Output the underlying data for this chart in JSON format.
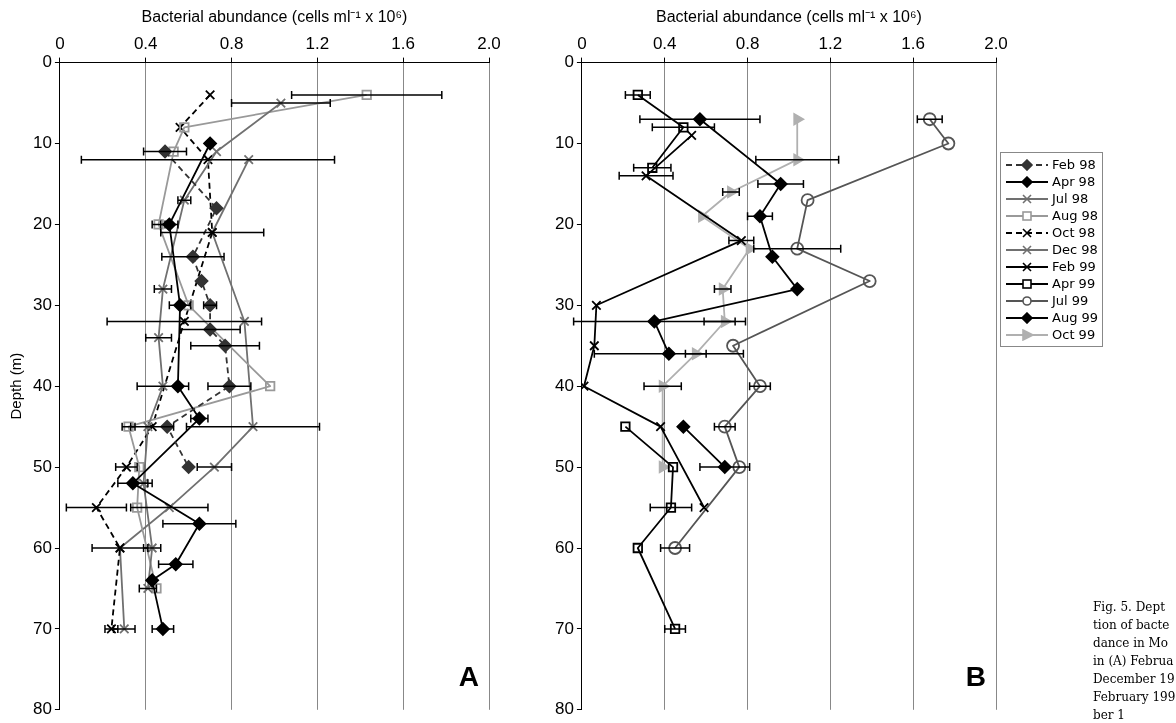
{
  "chart_data": [
    {
      "type": "line",
      "xlabel": "Bacterial abundance (cells ml⁻¹ x 10⁶)",
      "ylabel": "Depth (m)",
      "xlim": [
        0,
        2
      ],
      "xticks": [
        0,
        0.4,
        0.8,
        1.2,
        1.6,
        {
          "value": 2,
          "label": "2.0"
        }
      ],
      "ylim": [
        80,
        0
      ],
      "yticks": [
        0,
        10,
        20,
        30,
        40,
        50,
        60,
        70,
        80
      ],
      "grid": "x",
      "legend": "right",
      "annotations": [
        "A"
      ],
      "series": [
        {
          "name": "Feb 98",
          "color": "#333333",
          "line_style": "dashed",
          "marker": "diamond",
          "x": [
            0.49,
            0.73,
            0.62,
            0.66,
            0.7,
            0.7,
            0.77,
            0.79,
            0.5,
            0.6
          ],
          "values": [
            11,
            18,
            24,
            27,
            30,
            33,
            35,
            40,
            45,
            50
          ],
          "xerrors": [
            0.1,
            null,
            0.145,
            null,
            0.03,
            0.14,
            0.16,
            0.1,
            null,
            null
          ]
        },
        {
          "name": "Apr 98",
          "color": "#000000",
          "line_style": "solid",
          "marker": "diamond",
          "x": [
            0.7,
            0.51,
            0.56,
            0.55,
            0.65,
            0.34,
            0.65,
            0.54,
            0.43,
            0.48
          ],
          "values": [
            10,
            20,
            30,
            40,
            44,
            52,
            57,
            62,
            64,
            70
          ],
          "xerrors": [
            null,
            0.04,
            0.05,
            null,
            0.04,
            0.07,
            0.17,
            0.08,
            null,
            0.05
          ]
        },
        {
          "name": "Jul 98",
          "color": "#707070",
          "line_style": "solid",
          "marker": "cross",
          "x": [
            1.03,
            0.73,
            0.58,
            0.48,
            0.46,
            0.48,
            0.41,
            0.39,
            0.43,
            0.41
          ],
          "values": [
            5,
            11,
            17,
            28,
            34,
            40,
            45,
            52,
            60,
            65
          ],
          "xerrors": [
            0.23,
            null,
            0.03,
            0.04,
            0.06,
            0.12,
            null,
            0.04,
            0.04,
            0.04
          ]
        },
        {
          "name": "Aug 98",
          "color": "#999999",
          "line_style": "solid",
          "marker": "square",
          "x": [
            1.43,
            0.58,
            0.53,
            0.46,
            0.6,
            0.98,
            0.32,
            0.37,
            0.36,
            0.45
          ],
          "values": [
            4,
            8,
            11,
            20,
            30,
            40,
            45,
            50,
            55,
            65
          ],
          "xerrors": [
            0.35,
            null,
            null,
            0.03,
            null,
            null,
            0.03,
            null,
            null,
            null
          ]
        },
        {
          "name": "Oct 98",
          "color": "#000000",
          "line_style": "dashed",
          "marker": "cross",
          "x": [
            0.7,
            0.56,
            0.69,
            0.71,
            0.58,
            0.43,
            0.31,
            0.17,
            0.28,
            0.24
          ],
          "values": [
            4,
            8,
            12,
            21,
            32,
            45,
            50,
            55,
            60,
            70
          ],
          "xerrors": [
            null,
            null,
            0.59,
            0.24,
            0.36,
            0.1,
            0.05,
            0.14,
            0.13,
            0.03
          ]
        },
        {
          "name": "Dec 98",
          "color": "#707070",
          "line_style": "solid",
          "marker": "cross",
          "x": [
            0.88,
            0.71,
            0.86,
            0.9,
            0.72,
            0.51,
            0.28,
            0.3
          ],
          "values": [
            12,
            21,
            32,
            45,
            50,
            55,
            60,
            70
          ],
          "xerrors": [
            null,
            null,
            null,
            0.31,
            0.08,
            0.18,
            null,
            0.05
          ]
        }
      ]
    },
    {
      "type": "line",
      "xlabel": "Bacterial abundance (cells ml⁻¹ x 10⁶)",
      "xlim": [
        0,
        2
      ],
      "xticks": [
        0,
        0.4,
        0.8,
        1.2,
        1.6,
        {
          "value": 2,
          "label": "2.0"
        }
      ],
      "ylim": [
        80,
        0
      ],
      "yticks": [
        0,
        10,
        20,
        30,
        40,
        50,
        60,
        70,
        80
      ],
      "grid": "x",
      "legend": "right",
      "annotations": [
        "B",
        "Fig. 5. Dept",
        "tion of bacte",
        "dance in Mo",
        "in (A) Februa",
        "December 19",
        "February 199",
        "ber 1"
      ],
      "series": [
        {
          "name": "Feb 99",
          "color": "#000000",
          "line_style": "solid",
          "marker": "cross",
          "x": [
            0.53,
            0.31,
            0.77,
            0.07,
            0.06,
            0.01,
            0.38,
            0.59
          ],
          "values": [
            9,
            14,
            22,
            30,
            35,
            40,
            45,
            55
          ],
          "xerrors": [
            null,
            0.13,
            0.06,
            null,
            null,
            null,
            null,
            null
          ]
        },
        {
          "name": "Apr 99",
          "color": "#000000",
          "line_style": "solid",
          "marker": "square",
          "x": [
            0.27,
            0.49,
            0.34,
            null,
            0.21,
            0.44,
            0.43,
            0.27,
            0.45
          ],
          "values": [
            4,
            8,
            13,
            null,
            45,
            50,
            55,
            60,
            70
          ],
          "xerrors": [
            0.06,
            0.15,
            0.09,
            null,
            null,
            null,
            0.1,
            null,
            0.05
          ]
        },
        {
          "name": "Jul 99",
          "color": "#555555",
          "line_style": "solid",
          "marker": "circle",
          "x": [
            1.68,
            1.77,
            1.09,
            1.04,
            1.39,
            0.73,
            0.86,
            0.69,
            0.76,
            0.45
          ],
          "values": [
            7,
            10,
            17,
            23,
            27,
            35,
            40,
            45,
            50,
            60
          ],
          "xerrors": [
            0.06,
            null,
            null,
            0.21,
            null,
            null,
            0.05,
            0.05,
            null,
            0.07
          ]
        },
        {
          "name": "Aug 99",
          "color": "#000000",
          "line_style": "solid",
          "marker": "diamond",
          "x": [
            0.57,
            0.96,
            0.86,
            0.92,
            1.04,
            0.35,
            0.42,
            null,
            0.49,
            0.69
          ],
          "values": [
            7,
            15,
            19,
            24,
            28,
            32,
            36,
            null,
            45,
            50
          ],
          "xerrors": [
            0.29,
            0.11,
            0.06,
            null,
            null,
            0.39,
            0.36,
            null,
            null,
            0.12
          ]
        },
        {
          "name": "Oct 99",
          "color": "#b0b0b0",
          "line_style": "solid",
          "marker": "triangle",
          "x": [
            1.04,
            1.04,
            0.72,
            0.58,
            0.81,
            0.68,
            0.69,
            0.55,
            0.39,
            0.39
          ],
          "values": [
            7,
            12,
            16,
            19,
            23,
            28,
            32,
            36,
            40,
            50
          ],
          "xerrors": [
            null,
            0.2,
            0.04,
            null,
            null,
            0.04,
            0.1,
            0.05,
            0.09,
            null
          ]
        }
      ]
    }
  ]
}
